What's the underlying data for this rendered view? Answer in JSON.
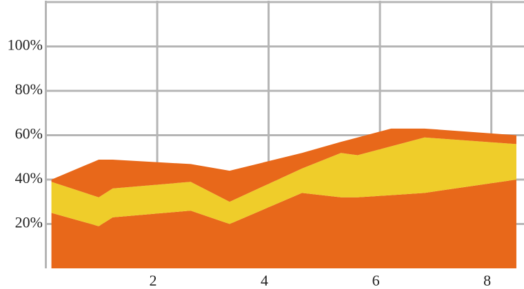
{
  "chart_data": {
    "type": "stacked_area",
    "x": [
      0.1,
      0.95,
      1.2,
      2.6,
      3.3,
      4.6,
      5.3,
      5.6,
      6.2,
      6.8,
      8.45
    ],
    "series": [
      {
        "color": "#e8681a",
        "values": [
          25,
          19,
          23,
          26,
          20,
          34,
          32,
          32,
          33,
          34,
          40
        ]
      },
      {
        "color": "#efcd2a",
        "values": [
          14,
          13,
          13,
          13,
          10,
          11,
          20,
          19,
          22,
          25,
          16
        ]
      },
      {
        "color": "#e8681a",
        "values": [
          1,
          17,
          13,
          8,
          14,
          7,
          5,
          8,
          8,
          4,
          4
        ]
      }
    ],
    "xlim": [
      0,
      8.5
    ],
    "ylim": [
      0,
      120
    ],
    "xticks": [
      2,
      4,
      6,
      8
    ],
    "yticks": [
      {
        "value": 20,
        "label": "20%"
      },
      {
        "value": 40,
        "label": "40%"
      },
      {
        "value": 60,
        "label": "60%"
      },
      {
        "value": 80,
        "label": "80%"
      },
      {
        "value": 100,
        "label": "100%"
      }
    ],
    "grid": true
  }
}
